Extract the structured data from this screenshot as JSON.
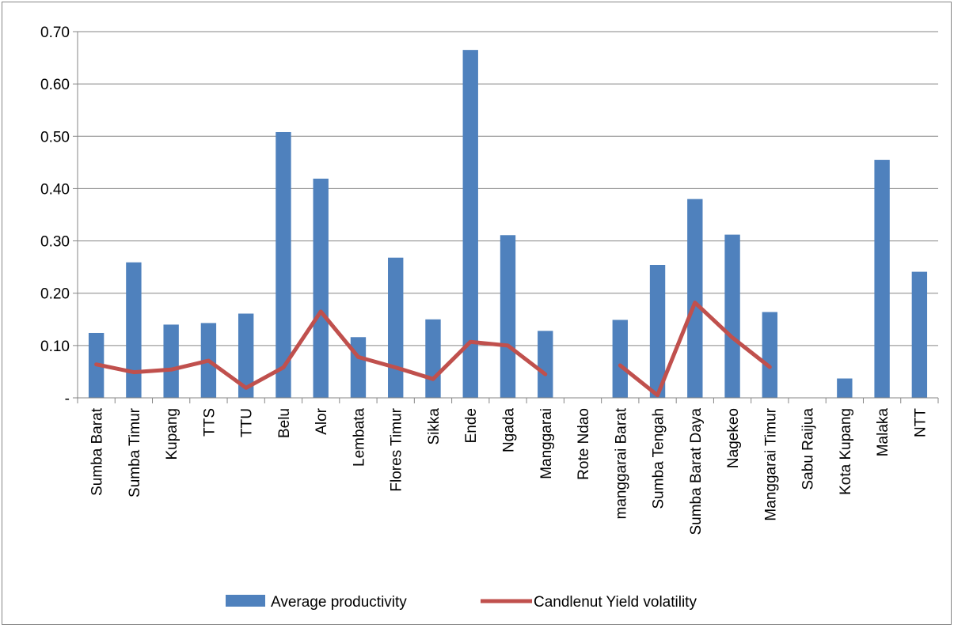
{
  "chart_data": {
    "type": "bar",
    "categories": [
      "Sumba Barat",
      "Sumba Timur",
      "Kupang",
      "TTS",
      "TTU",
      "Belu",
      "Alor",
      "Lembata",
      "Flores Timur",
      "Sikka",
      "Ende",
      "Ngada",
      "Manggarai",
      "Rote Ndao",
      "manggarai Barat",
      "Sumba Tengah",
      "Sumba Barat Daya",
      "Nagekeo",
      "Manggarai Timur",
      "Sabu Raijua",
      "Kota Kupang",
      "Malaka",
      "NTT"
    ],
    "series": [
      {
        "name": "Average productivity",
        "type": "bar",
        "color": "#4f81bd",
        "values": [
          0.124,
          0.259,
          0.14,
          0.143,
          0.161,
          0.508,
          0.419,
          0.116,
          0.268,
          0.15,
          0.665,
          0.311,
          0.128,
          null,
          0.149,
          0.254,
          0.38,
          0.312,
          0.164,
          null,
          0.037,
          0.455,
          0.241
        ]
      },
      {
        "name": "Candlenut Yield volatility",
        "type": "line",
        "color": "#c0504d",
        "values": [
          0.064,
          0.049,
          0.054,
          0.071,
          0.019,
          0.058,
          0.165,
          0.078,
          0.058,
          0.036,
          0.107,
          0.1,
          0.045,
          null,
          0.062,
          0.005,
          0.182,
          0.115,
          0.059,
          null,
          null,
          null,
          null
        ]
      }
    ],
    "y_ticks": [
      "-",
      "0.10",
      "0.20",
      "0.30",
      "0.40",
      "0.50",
      "0.60",
      "0.70"
    ],
    "ylim": [
      0,
      0.7
    ],
    "grid": true,
    "legend": "bottom"
  }
}
